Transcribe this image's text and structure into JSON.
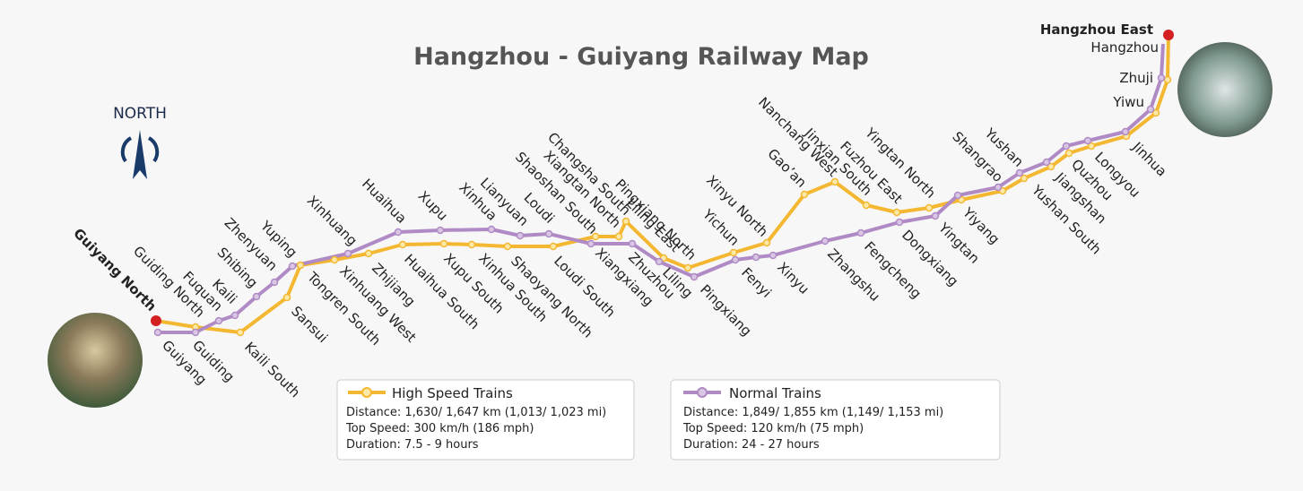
{
  "title": "Hangzhou - Guiyang Railway Map",
  "compass": {
    "label": "NORTH"
  },
  "terminals": [
    "Guiyang North",
    "Hangzhou East"
  ],
  "stations_upper": [
    "Guiding North",
    "Fuquan",
    "Kaili",
    "Shibing",
    "Zhenyuan",
    "Yuping",
    "Xinhuang",
    "Huaihua",
    "Xupu",
    "Xinhua",
    "Lianyuan",
    "Loudi",
    "Shaoshan South",
    "Xiangtan North",
    "Changsha South",
    "Liling East",
    "Pingxiang North",
    "Yichun",
    "Xinyu North",
    "Gao’an",
    "Nanchang West",
    "Jinxian South",
    "Fuzhou East",
    "Yingtan North",
    "Shangrao",
    "Yushan"
  ],
  "stations_lower": [
    "Guiyang",
    "Guiding",
    "Kaili South",
    "Sansui",
    "Tongren South",
    "Xinhuang West",
    "Zhijiang",
    "Huaihua South",
    "Xupu South",
    "Xinhua South",
    "Shaoyang North",
    "Loudi South",
    "Xiangxiang",
    "Zhuzhou",
    "Liling",
    "Pingxiang",
    "Fenyi",
    "Xinyu",
    "Zhangshu",
    "Fengcheng",
    "Dongxiang",
    "Yingtan",
    "Yiyang",
    "Yushan South",
    "Jiangshan",
    "Quzhou",
    "Longyou",
    "Jinhua"
  ],
  "stations_east": [
    "Hangzhou",
    "Zhuji",
    "Yiwu"
  ],
  "legend": [
    {
      "name": "High Speed Trains",
      "lines": [
        "Distance: 1,630/ 1,647 km (1,013/ 1,023 mi)",
        "Top Speed: 300 km/h (186 mph)",
        "Duration: 7.5 - 9 hours"
      ]
    },
    {
      "name": "Normal Trains",
      "lines": [
        "Distance: 1,849/ 1,855 km (1,149/ 1,153 mi)",
        "Top Speed: 120 km/h (75 mph)",
        "Duration: 24 - 27 hours"
      ]
    }
  ]
}
